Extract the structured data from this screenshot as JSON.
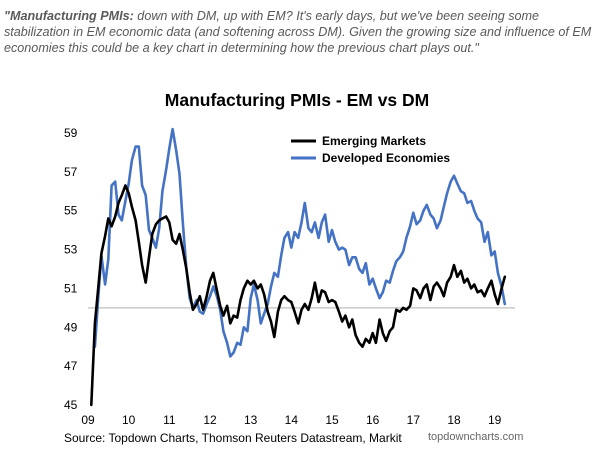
{
  "commentary": {
    "lead": "\"Manufacturing PMIs:",
    "text": " down with DM, up with EM?  It's early days, but we've been seeing some stabilization in EM economic data (and softening across DM).  Given the growing size and influence of EM economies this could be a key chart in determining how the previous chart plays out.\""
  },
  "footer": {
    "source": "Source: Topdown Charts, Thomson Reuters Datastream, Markit",
    "site": "topdowncharts.com"
  },
  "colors": {
    "em": "#000000",
    "dm": "#4472C4",
    "reference_line": "#bfbfbf"
  },
  "chart_data": {
    "type": "line",
    "title": "Manufacturing PMIs - EM vs DM",
    "xlabel": "",
    "ylabel": "",
    "x_tick_labels": [
      "09",
      "10",
      "11",
      "12",
      "13",
      "14",
      "15",
      "16",
      "17",
      "18",
      "19"
    ],
    "xlim": [
      2009.0,
      2019.5
    ],
    "ylim": [
      45,
      59
    ],
    "y_ticks": [
      45,
      47,
      49,
      51,
      53,
      55,
      57,
      59
    ],
    "reference_line": 50,
    "legend_position": "top-right",
    "grid": false,
    "series": [
      {
        "name": "Emerging Markets",
        "color": "#000000",
        "points": [
          [
            2009.08,
            45.0
          ],
          [
            2009.17,
            49.2
          ],
          [
            2009.25,
            51.0
          ],
          [
            2009.33,
            52.8
          ],
          [
            2009.42,
            53.7
          ],
          [
            2009.5,
            54.6
          ],
          [
            2009.58,
            54.2
          ],
          [
            2009.67,
            54.7
          ],
          [
            2009.75,
            55.4
          ],
          [
            2009.83,
            55.8
          ],
          [
            2009.92,
            56.3
          ],
          [
            2010.0,
            55.9
          ],
          [
            2010.08,
            55.2
          ],
          [
            2010.17,
            54.5
          ],
          [
            2010.25,
            53.4
          ],
          [
            2010.33,
            52.2
          ],
          [
            2010.42,
            51.3
          ],
          [
            2010.5,
            52.6
          ],
          [
            2010.58,
            53.8
          ],
          [
            2010.67,
            54.3
          ],
          [
            2010.75,
            54.5
          ],
          [
            2010.83,
            54.6
          ],
          [
            2010.92,
            54.7
          ],
          [
            2011.0,
            54.4
          ],
          [
            2011.08,
            53.5
          ],
          [
            2011.17,
            53.3
          ],
          [
            2011.25,
            53.8
          ],
          [
            2011.33,
            53.0
          ],
          [
            2011.42,
            52.0
          ],
          [
            2011.5,
            50.8
          ],
          [
            2011.58,
            49.9
          ],
          [
            2011.67,
            50.2
          ],
          [
            2011.75,
            50.6
          ],
          [
            2011.83,
            49.9
          ],
          [
            2011.92,
            50.6
          ],
          [
            2012.0,
            51.4
          ],
          [
            2012.08,
            51.8
          ],
          [
            2012.17,
            50.9
          ],
          [
            2012.25,
            50.1
          ],
          [
            2012.33,
            49.6
          ],
          [
            2012.42,
            50.1
          ],
          [
            2012.5,
            49.2
          ],
          [
            2012.58,
            49.6
          ],
          [
            2012.67,
            49.5
          ],
          [
            2012.75,
            50.4
          ],
          [
            2012.83,
            51.0
          ],
          [
            2012.92,
            51.4
          ],
          [
            2013.0,
            51.2
          ],
          [
            2013.08,
            51.4
          ],
          [
            2013.17,
            51.0
          ],
          [
            2013.25,
            51.2
          ],
          [
            2013.33,
            50.7
          ],
          [
            2013.42,
            49.8
          ],
          [
            2013.5,
            49.3
          ],
          [
            2013.58,
            48.5
          ],
          [
            2013.67,
            49.8
          ],
          [
            2013.75,
            50.4
          ],
          [
            2013.83,
            50.6
          ],
          [
            2013.92,
            50.4
          ],
          [
            2014.0,
            50.3
          ],
          [
            2014.08,
            49.8
          ],
          [
            2014.17,
            49.2
          ],
          [
            2014.25,
            49.9
          ],
          [
            2014.33,
            50.2
          ],
          [
            2014.42,
            49.9
          ],
          [
            2014.5,
            50.5
          ],
          [
            2014.58,
            51.3
          ],
          [
            2014.67,
            50.3
          ],
          [
            2014.75,
            50.9
          ],
          [
            2014.83,
            50.8
          ],
          [
            2014.92,
            50.3
          ],
          [
            2015.0,
            50.4
          ],
          [
            2015.08,
            50.3
          ],
          [
            2015.17,
            49.8
          ],
          [
            2015.25,
            49.3
          ],
          [
            2015.33,
            49.6
          ],
          [
            2015.42,
            49.0
          ],
          [
            2015.5,
            49.4
          ],
          [
            2015.58,
            48.6
          ],
          [
            2015.67,
            48.2
          ],
          [
            2015.75,
            48.0
          ],
          [
            2015.83,
            48.4
          ],
          [
            2015.92,
            48.2
          ],
          [
            2016.0,
            48.7
          ],
          [
            2016.08,
            48.2
          ],
          [
            2016.17,
            49.4
          ],
          [
            2016.25,
            48.7
          ],
          [
            2016.33,
            48.3
          ],
          [
            2016.42,
            48.8
          ],
          [
            2016.5,
            49.0
          ],
          [
            2016.58,
            49.9
          ],
          [
            2016.67,
            49.8
          ],
          [
            2016.75,
            50.0
          ],
          [
            2016.83,
            49.9
          ],
          [
            2016.92,
            50.1
          ],
          [
            2017.0,
            51.0
          ],
          [
            2017.08,
            50.9
          ],
          [
            2017.17,
            50.5
          ],
          [
            2017.25,
            51.0
          ],
          [
            2017.33,
            51.2
          ],
          [
            2017.42,
            50.4
          ],
          [
            2017.5,
            51.1
          ],
          [
            2017.58,
            51.3
          ],
          [
            2017.67,
            51.0
          ],
          [
            2017.75,
            50.6
          ],
          [
            2017.83,
            51.3
          ],
          [
            2017.92,
            51.6
          ],
          [
            2018.0,
            52.2
          ],
          [
            2018.08,
            51.6
          ],
          [
            2018.17,
            51.9
          ],
          [
            2018.25,
            51.3
          ],
          [
            2018.33,
            51.5
          ],
          [
            2018.42,
            51.0
          ],
          [
            2018.5,
            51.2
          ],
          [
            2018.58,
            50.8
          ],
          [
            2018.67,
            50.9
          ],
          [
            2018.75,
            50.6
          ],
          [
            2018.83,
            51.0
          ],
          [
            2018.92,
            51.4
          ],
          [
            2019.0,
            50.7
          ],
          [
            2019.08,
            50.2
          ],
          [
            2019.17,
            51.0
          ],
          [
            2019.25,
            51.6
          ]
        ]
      },
      {
        "name": "Developed Economies",
        "color": "#4472C4",
        "points": [
          [
            2009.17,
            48.0
          ],
          [
            2009.25,
            50.5
          ],
          [
            2009.33,
            52.7
          ],
          [
            2009.42,
            51.2
          ],
          [
            2009.5,
            52.5
          ],
          [
            2009.58,
            56.3
          ],
          [
            2009.67,
            56.5
          ],
          [
            2009.75,
            54.8
          ],
          [
            2009.83,
            54.5
          ],
          [
            2009.92,
            55.5
          ],
          [
            2010.0,
            56.4
          ],
          [
            2010.08,
            57.6
          ],
          [
            2010.17,
            58.3
          ],
          [
            2010.25,
            58.3
          ],
          [
            2010.33,
            56.3
          ],
          [
            2010.42,
            55.8
          ],
          [
            2010.5,
            54.0
          ],
          [
            2010.58,
            53.6
          ],
          [
            2010.67,
            53.1
          ],
          [
            2010.75,
            54.1
          ],
          [
            2010.83,
            56.0
          ],
          [
            2010.92,
            57.1
          ],
          [
            2011.0,
            58.2
          ],
          [
            2011.08,
            59.2
          ],
          [
            2011.17,
            58.1
          ],
          [
            2011.25,
            56.9
          ],
          [
            2011.33,
            54.4
          ],
          [
            2011.42,
            52.0
          ],
          [
            2011.5,
            50.5
          ],
          [
            2011.58,
            50.0
          ],
          [
            2011.67,
            50.4
          ],
          [
            2011.75,
            49.8
          ],
          [
            2011.83,
            49.7
          ],
          [
            2011.92,
            50.2
          ],
          [
            2012.0,
            50.6
          ],
          [
            2012.08,
            51.1
          ],
          [
            2012.17,
            50.6
          ],
          [
            2012.25,
            49.9
          ],
          [
            2012.33,
            48.8
          ],
          [
            2012.42,
            48.2
          ],
          [
            2012.5,
            47.5
          ],
          [
            2012.58,
            47.7
          ],
          [
            2012.67,
            48.2
          ],
          [
            2012.75,
            48.1
          ],
          [
            2012.83,
            49.0
          ],
          [
            2012.92,
            48.8
          ],
          [
            2013.0,
            50.5
          ],
          [
            2013.08,
            51.2
          ],
          [
            2013.17,
            50.4
          ],
          [
            2013.25,
            49.2
          ],
          [
            2013.33,
            49.7
          ],
          [
            2013.42,
            50.2
          ],
          [
            2013.5,
            51.1
          ],
          [
            2013.58,
            51.8
          ],
          [
            2013.67,
            51.6
          ],
          [
            2013.75,
            52.7
          ],
          [
            2013.83,
            53.6
          ],
          [
            2013.92,
            53.9
          ],
          [
            2014.0,
            53.1
          ],
          [
            2014.08,
            53.9
          ],
          [
            2014.17,
            53.6
          ],
          [
            2014.25,
            54.4
          ],
          [
            2014.33,
            55.4
          ],
          [
            2014.42,
            54.1
          ],
          [
            2014.5,
            53.9
          ],
          [
            2014.58,
            54.4
          ],
          [
            2014.67,
            53.6
          ],
          [
            2014.75,
            54.4
          ],
          [
            2014.83,
            54.8
          ],
          [
            2014.92,
            53.4
          ],
          [
            2015.0,
            54.0
          ],
          [
            2015.08,
            53.4
          ],
          [
            2015.17,
            53.0
          ],
          [
            2015.25,
            53.1
          ],
          [
            2015.33,
            53.0
          ],
          [
            2015.42,
            52.2
          ],
          [
            2015.5,
            52.6
          ],
          [
            2015.58,
            52.6
          ],
          [
            2015.67,
            52.0
          ],
          [
            2015.75,
            51.8
          ],
          [
            2015.83,
            52.3
          ],
          [
            2015.92,
            51.2
          ],
          [
            2016.0,
            51.5
          ],
          [
            2016.08,
            51.0
          ],
          [
            2016.17,
            50.5
          ],
          [
            2016.25,
            50.8
          ],
          [
            2016.33,
            51.4
          ],
          [
            2016.42,
            51.3
          ],
          [
            2016.5,
            51.9
          ],
          [
            2016.58,
            52.4
          ],
          [
            2016.67,
            52.6
          ],
          [
            2016.75,
            52.9
          ],
          [
            2016.83,
            53.6
          ],
          [
            2016.92,
            54.2
          ],
          [
            2017.0,
            54.9
          ],
          [
            2017.08,
            54.3
          ],
          [
            2017.17,
            54.5
          ],
          [
            2017.25,
            55.0
          ],
          [
            2017.33,
            55.3
          ],
          [
            2017.42,
            54.8
          ],
          [
            2017.5,
            54.6
          ],
          [
            2017.58,
            54.1
          ],
          [
            2017.67,
            54.5
          ],
          [
            2017.75,
            55.2
          ],
          [
            2017.83,
            55.9
          ],
          [
            2017.92,
            56.5
          ],
          [
            2018.0,
            56.8
          ],
          [
            2018.08,
            56.4
          ],
          [
            2018.17,
            56.0
          ],
          [
            2018.25,
            55.9
          ],
          [
            2018.33,
            55.4
          ],
          [
            2018.42,
            55.5
          ],
          [
            2018.5,
            55.0
          ],
          [
            2018.58,
            54.6
          ],
          [
            2018.67,
            54.4
          ],
          [
            2018.75,
            53.4
          ],
          [
            2018.83,
            53.9
          ],
          [
            2018.92,
            52.7
          ],
          [
            2019.0,
            52.9
          ],
          [
            2019.08,
            51.8
          ],
          [
            2019.17,
            51.1
          ],
          [
            2019.25,
            50.2
          ]
        ]
      }
    ]
  }
}
